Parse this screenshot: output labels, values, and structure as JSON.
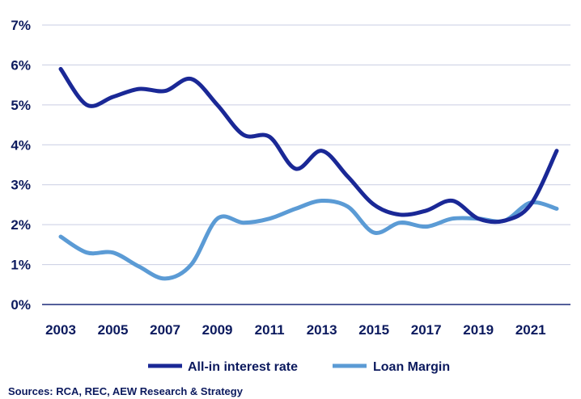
{
  "chart_data": {
    "type": "line",
    "x": [
      2003,
      2004,
      2005,
      2006,
      2007,
      2008,
      2009,
      2010,
      2011,
      2012,
      2013,
      2014,
      2015,
      2016,
      2017,
      2018,
      2019,
      2020,
      2021,
      2022
    ],
    "x_tick_labels": [
      "2003",
      "2005",
      "2007",
      "2009",
      "2011",
      "2013",
      "2015",
      "2017",
      "2019",
      "2021"
    ],
    "y_tick_labels": [
      "0%",
      "1%",
      "2%",
      "3%",
      "4%",
      "5%",
      "6%",
      "7%"
    ],
    "ylim": [
      0,
      7
    ],
    "grid": "horizontal",
    "legend_position": "bottom",
    "series": [
      {
        "name": "All-in interest rate",
        "color": "#1a2896",
        "values": [
          5.9,
          5.0,
          5.2,
          5.4,
          5.35,
          5.65,
          5.0,
          4.25,
          4.2,
          3.4,
          3.85,
          3.2,
          2.5,
          2.25,
          2.35,
          2.6,
          2.15,
          2.1,
          2.5,
          3.85
        ]
      },
      {
        "name": "Loan Margin",
        "color": "#5b9bd5",
        "values": [
          1.7,
          1.3,
          1.3,
          0.95,
          0.65,
          1.0,
          2.15,
          2.05,
          2.15,
          2.4,
          2.6,
          2.45,
          1.8,
          2.05,
          1.95,
          2.15,
          2.15,
          2.1,
          2.55,
          2.4
        ]
      }
    ],
    "source": "Sources: RCA, REC, AEW Research & Strategy"
  }
}
